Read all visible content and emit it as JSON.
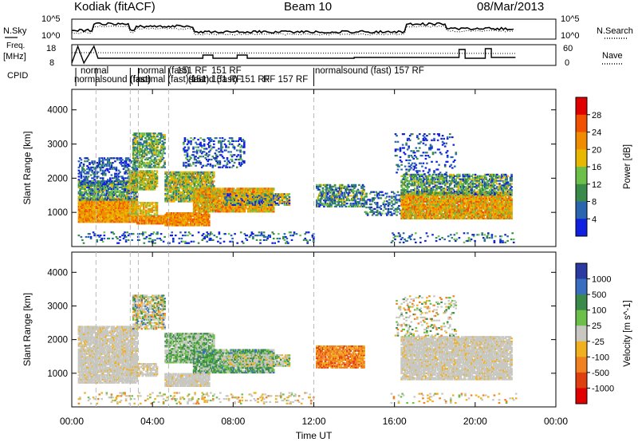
{
  "header": {
    "station": "Kodiak (fitACF)",
    "beam": "Beam 10",
    "date": "08/Mar/2013"
  },
  "labels": {
    "nsky": "N.Sky",
    "nsky_ticks": [
      "10^5",
      "10^0"
    ],
    "nsearch": "N.Search",
    "nsearch_ticks": [
      "10^5",
      "10^0"
    ],
    "freq": "Freq.",
    "freq_unit": "[MHz]",
    "freq_ticks": [
      "18",
      "8"
    ],
    "nave": "Nave",
    "nave_ticks": [
      "60",
      "0"
    ],
    "cpid": "CPID",
    "cpid_texts": [
      "normal",
      "normalsound (fast)",
      "(fast)",
      "normal (fast)",
      "normal (fast) 151",
      "151 RF",
      "sound (fast) 151 RF",
      "(fast) 151 RF",
      "151 RF",
      "RF 157 RF",
      "normalsound (fast) 157 RF"
    ]
  },
  "chart_data": [
    {
      "type": "heatmap",
      "title": "Power",
      "xlabel": "Time UT",
      "ylabel": "Slant Range [km]",
      "xlim": [
        "00:00",
        "24:00"
      ],
      "ylim": [
        0,
        4600
      ],
      "x_ticks": [
        "00:00",
        "04:00",
        "08:00",
        "12:00",
        "16:00",
        "20:00",
        "00:00"
      ],
      "y_ticks": [
        1000,
        2000,
        3000,
        4000
      ],
      "colorbar_label": "Power [dB]",
      "colorbar_ticks": [
        "28",
        "24",
        "20",
        "16",
        "12",
        "8",
        "4"
      ],
      "colorbar_colors": [
        "#e00000",
        "#f05000",
        "#f08c00",
        "#e8b800",
        "#6cc04a",
        "#3a8a4a",
        "#2a66b0",
        "#1020e0"
      ]
    },
    {
      "type": "heatmap",
      "title": "Velocity",
      "xlabel": "Time UT",
      "ylabel": "Slant Range [km]",
      "xlim": [
        "00:00",
        "24:00"
      ],
      "ylim": [
        0,
        4600
      ],
      "x_ticks": [
        "00:00",
        "04:00",
        "08:00",
        "12:00",
        "16:00",
        "20:00",
        "00:00"
      ],
      "y_ticks": [
        1000,
        2000,
        3000,
        4000
      ],
      "colorbar_label": "Velocity [m s^-1]",
      "colorbar_ticks": [
        "1000",
        "500",
        "100",
        "25",
        "-25",
        "-100",
        "-500",
        "-1000"
      ],
      "colorbar_colors": [
        "#2a3aa0",
        "#3a6ec0",
        "#3a8a4a",
        "#6cc04a",
        "#c8c8c0",
        "#f0b020",
        "#f08020",
        "#e04010",
        "#e00000"
      ]
    }
  ]
}
